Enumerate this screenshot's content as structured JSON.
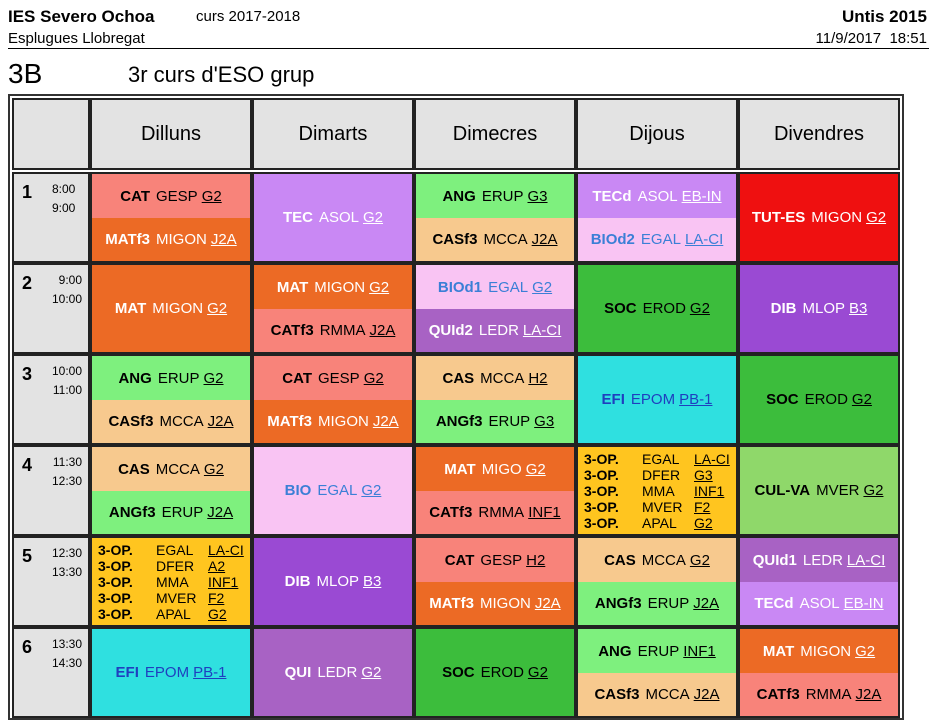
{
  "header": {
    "school": "IES Severo Ochoa",
    "year": "curs 2017-2018",
    "city": "Esplugues Llobregat",
    "software": "Untis 2015",
    "datetime": "11/9/2017  18:51",
    "group": "3B",
    "group_desc": "3r curs d'ESO grup"
  },
  "days": [
    "Dilluns",
    "Dimarts",
    "Dimecres",
    "Dijous",
    "Divendres"
  ],
  "periods": [
    {
      "num": "1",
      "start": "8:00",
      "end": "9:00"
    },
    {
      "num": "2",
      "start": "9:00",
      "end": "10:00"
    },
    {
      "num": "3",
      "start": "10:00",
      "end": "11:00"
    },
    {
      "num": "4",
      "start": "11:30",
      "end": "12:30"
    },
    {
      "num": "5",
      "start": "12:30",
      "end": "13:30"
    },
    {
      "num": "6",
      "start": "13:30",
      "end": "14:30"
    }
  ],
  "colors": {
    "cat": "#f8837a",
    "mat": "#ec6a25",
    "ang": "#7ef07e",
    "cas": "#f7c98e",
    "tec": "#c988f4",
    "tecd": "#c988f4",
    "bio": "#f9c4f3",
    "bioblue": "#3b7fd6",
    "tut": "#ef1010",
    "dib": "#9a4ad3",
    "soc": "#3cbd3c",
    "efi": "#2fe0e0",
    "efitext": "#1f3fbf",
    "qui": "#a862c4",
    "cul": "#8fd86a",
    "op": "#ffc51f"
  },
  "grid": [
    [
      {
        "type": "split",
        "top": {
          "subject": "CAT",
          "teacher": "GESP",
          "room": "G2",
          "bg": "#f8837a",
          "fg": "#000"
        },
        "bottom": {
          "subject": "MATf3",
          "teacher": "MIGON",
          "room": "J2A",
          "bg": "#ec6a25",
          "fg": "#fff"
        }
      },
      {
        "type": "full",
        "subject": "TEC",
        "teacher": "ASOL",
        "room": "G2",
        "bg": "#c988f4",
        "fg": "#fff"
      },
      {
        "type": "split",
        "top": {
          "subject": "ANG",
          "teacher": "ERUP",
          "room": "G3",
          "bg": "#7ef07e",
          "fg": "#000"
        },
        "bottom": {
          "subject": "CASf3",
          "teacher": "MCCA",
          "room": "J2A",
          "bg": "#f7c98e",
          "fg": "#000"
        }
      },
      {
        "type": "split",
        "top": {
          "subject": "TECd",
          "teacher": "ASOL",
          "room": "EB-IN",
          "bg": "#c988f4",
          "fg": "#fff"
        },
        "bottom": {
          "subject": "BIOd2",
          "teacher": "EGAL",
          "room": "LA-CI",
          "bg": "#f9c4f3",
          "fg": "#3b7fd6"
        }
      },
      {
        "type": "full",
        "subject": "TUT-ES",
        "teacher": "MIGON",
        "room": "G2",
        "bg": "#ef1010",
        "fg": "#fff"
      }
    ],
    [
      {
        "type": "full",
        "subject": "MAT",
        "teacher": "MIGON",
        "room": "G2",
        "bg": "#ec6a25",
        "fg": "#fff"
      },
      {
        "type": "split",
        "top": {
          "subject": "MAT",
          "teacher": "MIGON",
          "room": "G2",
          "bg": "#ec6a25",
          "fg": "#fff"
        },
        "bottom": {
          "subject": "CATf3",
          "teacher": "RMMA",
          "room": "J2A",
          "bg": "#f8837a",
          "fg": "#000"
        }
      },
      {
        "type": "split",
        "top": {
          "subject": "BIOd1",
          "teacher": "EGAL",
          "room": "G2",
          "bg": "#f9c4f3",
          "fg": "#3b7fd6"
        },
        "bottom": {
          "subject": "QUId2",
          "teacher": "LEDR",
          "room": "LA-CI",
          "bg": "#a862c4",
          "fg": "#fff"
        }
      },
      {
        "type": "full",
        "subject": "SOC",
        "teacher": "EROD",
        "room": "G2",
        "bg": "#3cbd3c",
        "fg": "#000"
      },
      {
        "type": "full",
        "subject": "DIB",
        "teacher": "MLOP",
        "room": "B3",
        "bg": "#9a4ad3",
        "fg": "#fff"
      }
    ],
    [
      {
        "type": "split",
        "top": {
          "subject": "ANG",
          "teacher": "ERUP",
          "room": "G2",
          "bg": "#7ef07e",
          "fg": "#000"
        },
        "bottom": {
          "subject": "CASf3",
          "teacher": "MCCA",
          "room": "J2A",
          "bg": "#f7c98e",
          "fg": "#000"
        }
      },
      {
        "type": "split",
        "top": {
          "subject": "CAT",
          "teacher": "GESP",
          "room": "G2",
          "bg": "#f8837a",
          "fg": "#000"
        },
        "bottom": {
          "subject": "MATf3",
          "teacher": "MIGON",
          "room": "J2A",
          "bg": "#ec6a25",
          "fg": "#fff"
        }
      },
      {
        "type": "split",
        "top": {
          "subject": "CAS",
          "teacher": "MCCA",
          "room": "H2",
          "bg": "#f7c98e",
          "fg": "#000"
        },
        "bottom": {
          "subject": "ANGf3",
          "teacher": "ERUP",
          "room": "G3",
          "bg": "#7ef07e",
          "fg": "#000"
        }
      },
      {
        "type": "full",
        "subject": "EFI",
        "teacher": "EPOM",
        "room": "PB-1",
        "bg": "#2fe0e0",
        "fg": "#1f3fbf"
      },
      {
        "type": "full",
        "subject": "SOC",
        "teacher": "EROD",
        "room": "G2",
        "bg": "#3cbd3c",
        "fg": "#000"
      }
    ],
    [
      {
        "type": "split",
        "top": {
          "subject": "CAS",
          "teacher": "MCCA",
          "room": "G2",
          "bg": "#f7c98e",
          "fg": "#000"
        },
        "bottom": {
          "subject": "ANGf3",
          "teacher": "ERUP",
          "room": "J2A",
          "bg": "#7ef07e",
          "fg": "#000"
        }
      },
      {
        "type": "full",
        "subject": "BIO",
        "teacher": "EGAL",
        "room": "G2",
        "bg": "#f9c4f3",
        "fg": "#3b7fd6"
      },
      {
        "type": "split",
        "top": {
          "subject": "MAT",
          "teacher": "MIGO",
          "room": "G2",
          "bg": "#ec6a25",
          "fg": "#fff"
        },
        "bottom": {
          "subject": "CATf3",
          "teacher": "RMMA",
          "room": "INF1",
          "bg": "#f8837a",
          "fg": "#000"
        }
      },
      {
        "type": "multi",
        "bg": "#ffc51f",
        "rows": [
          {
            "subject": "3-OP.",
            "teacher": "EGAL",
            "room": "LA-CI"
          },
          {
            "subject": "3-OP.",
            "teacher": "DFER",
            "room": "G3"
          },
          {
            "subject": "3-OP.",
            "teacher": "MMA",
            "room": "INF1"
          },
          {
            "subject": "3-OP.",
            "teacher": "MVER",
            "room": "F2"
          },
          {
            "subject": "3-OP.",
            "teacher": "APAL",
            "room": "G2"
          }
        ]
      },
      {
        "type": "full",
        "subject": "CUL-VA",
        "teacher": "MVER",
        "room": "G2",
        "bg": "#8fd86a",
        "fg": "#000"
      }
    ],
    [
      {
        "type": "multi",
        "bg": "#ffc51f",
        "rows": [
          {
            "subject": "3-OP.",
            "teacher": "EGAL",
            "room": "LA-CI"
          },
          {
            "subject": "3-OP.",
            "teacher": "DFER",
            "room": "A2"
          },
          {
            "subject": "3-OP.",
            "teacher": "MMA",
            "room": "INF1"
          },
          {
            "subject": "3-OP.",
            "teacher": "MVER",
            "room": "F2"
          },
          {
            "subject": "3-OP.",
            "teacher": "APAL",
            "room": "G2"
          }
        ]
      },
      {
        "type": "full",
        "subject": "DIB",
        "teacher": "MLOP",
        "room": "B3",
        "bg": "#9a4ad3",
        "fg": "#fff"
      },
      {
        "type": "split",
        "top": {
          "subject": "CAT",
          "teacher": "GESP",
          "room": "H2",
          "bg": "#f8837a",
          "fg": "#000"
        },
        "bottom": {
          "subject": "MATf3",
          "teacher": "MIGON",
          "room": "J2A",
          "bg": "#ec6a25",
          "fg": "#fff"
        }
      },
      {
        "type": "split",
        "top": {
          "subject": "CAS",
          "teacher": "MCCA",
          "room": "G2",
          "bg": "#f7c98e",
          "fg": "#000"
        },
        "bottom": {
          "subject": "ANGf3",
          "teacher": "ERUP",
          "room": "J2A",
          "bg": "#7ef07e",
          "fg": "#000"
        }
      },
      {
        "type": "split",
        "top": {
          "subject": "QUId1",
          "teacher": "LEDR",
          "room": "LA-CI",
          "bg": "#a862c4",
          "fg": "#fff"
        },
        "bottom": {
          "subject": "TECd",
          "teacher": "ASOL",
          "room": "EB-IN",
          "bg": "#c988f4",
          "fg": "#fff"
        }
      }
    ],
    [
      {
        "type": "full",
        "subject": "EFI",
        "teacher": "EPOM",
        "room": "PB-1",
        "bg": "#2fe0e0",
        "fg": "#1f3fbf"
      },
      {
        "type": "full",
        "subject": "QUI",
        "teacher": "LEDR",
        "room": "G2",
        "bg": "#a862c4",
        "fg": "#fff"
      },
      {
        "type": "full",
        "subject": "SOC",
        "teacher": "EROD",
        "room": "G2",
        "bg": "#3cbd3c",
        "fg": "#000"
      },
      {
        "type": "split",
        "top": {
          "subject": "ANG",
          "teacher": "ERUP",
          "room": "INF1",
          "bg": "#7ef07e",
          "fg": "#000"
        },
        "bottom": {
          "subject": "CASf3",
          "teacher": "MCCA",
          "room": "J2A",
          "bg": "#f7c98e",
          "fg": "#000"
        }
      },
      {
        "type": "split",
        "top": {
          "subject": "MAT",
          "teacher": "MIGON",
          "room": "G2",
          "bg": "#ec6a25",
          "fg": "#fff"
        },
        "bottom": {
          "subject": "CATf3",
          "teacher": "RMMA",
          "room": "J2A",
          "bg": "#f8837a",
          "fg": "#000"
        }
      }
    ]
  ]
}
